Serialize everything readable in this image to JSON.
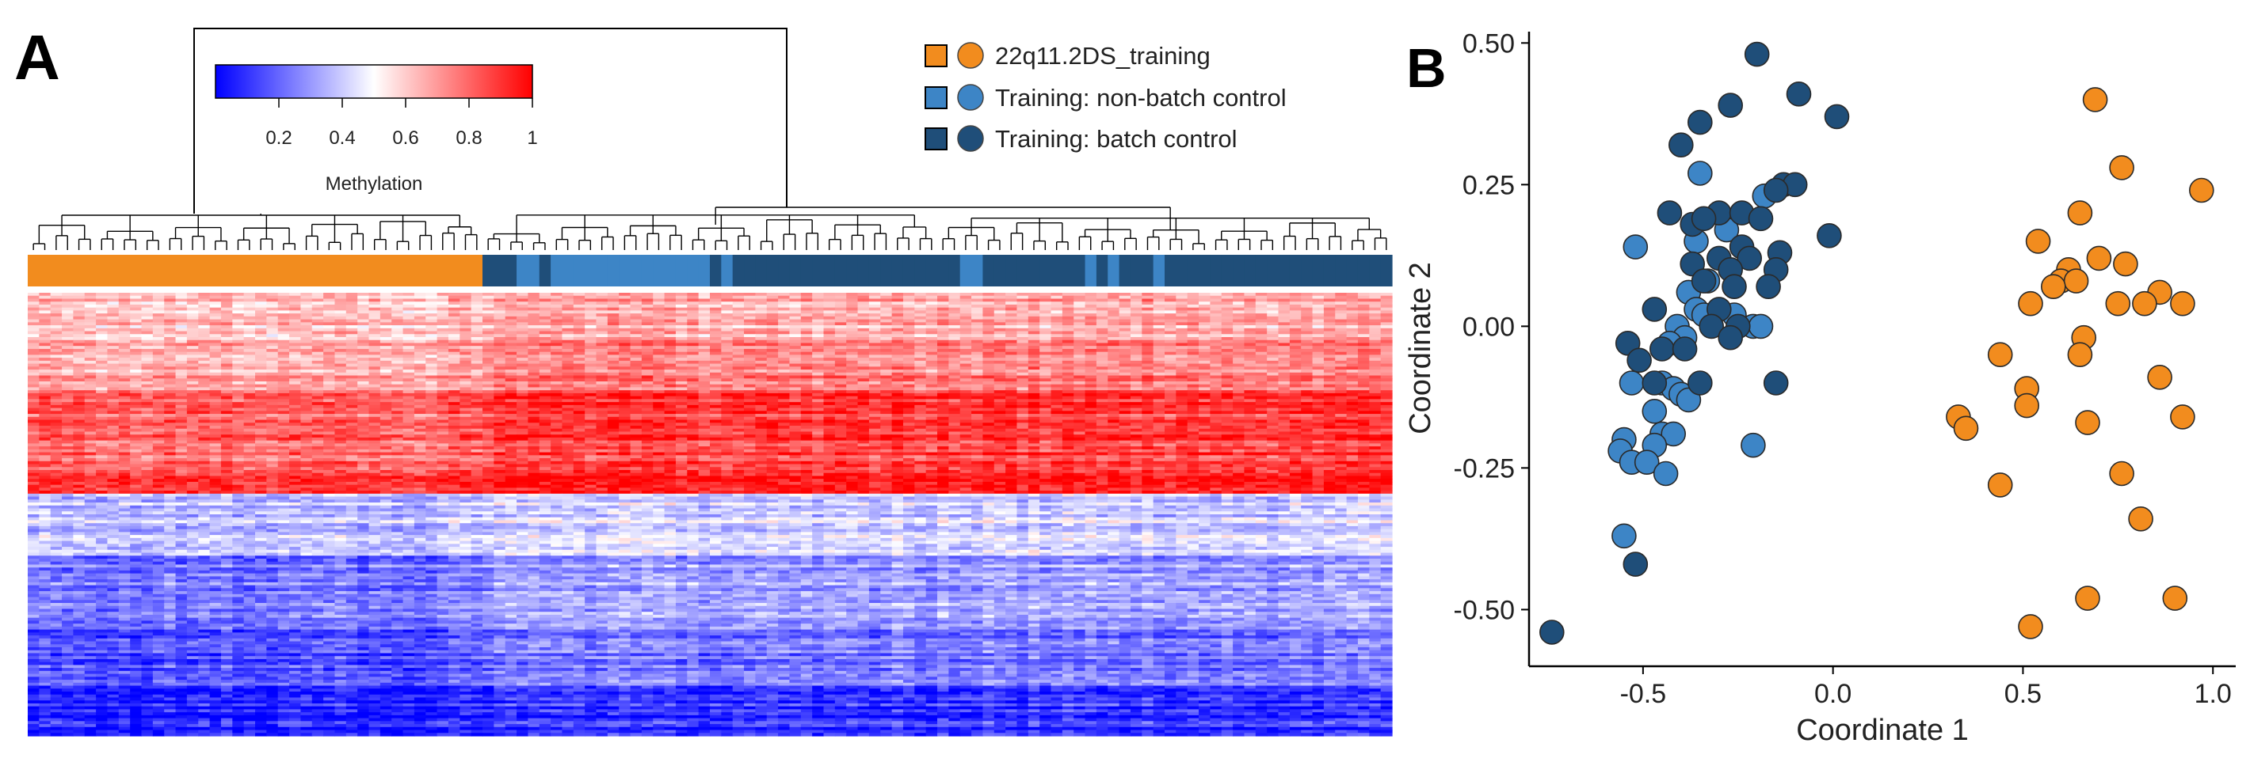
{
  "panel_a": {
    "label": "A",
    "colorbar": {
      "title": "Methylation",
      "ticks": [
        "0.2",
        "0.4",
        "0.6",
        "0.8",
        "1"
      ],
      "tick_values": [
        0.2,
        0.4,
        0.6,
        0.8,
        1.0
      ],
      "range": [
        0.0,
        1.0
      ],
      "low_color": "#0000ff",
      "mid_color": "#ffffff",
      "high_color": "#ff0000"
    },
    "legend": [
      {
        "label": "22q11.2DS_training",
        "square_color": "#f28c1e",
        "circle_color": "#f28c1e"
      },
      {
        "label": "Training: non-batch control",
        "square_color": "#3d85c6",
        "circle_color": "#3d85c6"
      },
      {
        "label": "Training: batch control",
        "square_color": "#1f4e79",
        "circle_color": "#1f4e79"
      }
    ],
    "annotation_bar": {
      "group_counts": {
        "22q11.2DS_training": 40,
        "controls": 80
      },
      "control_pattern": "DDDLLDLLLLLLLLLLLLLLDLDDDDDDDDDDDDDDDDDDDDLLDDDDDDDDDLDLDDDLDDDDDDDDDDDDDDDDDDDDDD"
    },
    "heatmap": {
      "rows": 150,
      "columns": 120,
      "row_blocks": [
        {
          "fraction": 0.1,
          "case_mean": 0.62,
          "control_mean": 0.66
        },
        {
          "fraction": 0.12,
          "case_mean": 0.66,
          "control_mean": 0.74
        },
        {
          "fraction": 0.18,
          "case_mean": 0.8,
          "control_mean": 0.88
        },
        {
          "fraction": 0.05,
          "case_mean": 0.9,
          "control_mean": 0.95
        },
        {
          "fraction": 0.14,
          "case_mean": 0.38,
          "control_mean": 0.42
        },
        {
          "fraction": 0.16,
          "case_mean": 0.24,
          "control_mean": 0.32
        },
        {
          "fraction": 0.13,
          "case_mean": 0.16,
          "control_mean": 0.24
        },
        {
          "fraction": 0.12,
          "case_mean": 0.06,
          "control_mean": 0.1
        }
      ]
    }
  },
  "panel_b": {
    "label": "B",
    "chart_data": {
      "type": "scatter",
      "title": "",
      "xlabel": "Coordinate 1",
      "ylabel": "Coordinate 2",
      "xlim": [
        -0.8,
        1.06
      ],
      "ylim": [
        -0.6,
        0.52
      ],
      "x_ticks": [
        -0.5,
        0.0,
        0.5,
        1.0
      ],
      "x_tick_labels": [
        "-0.5",
        "0.0",
        "0.5",
        "1.0"
      ],
      "y_ticks": [
        0.5,
        0.25,
        0.0,
        -0.25,
        -0.5
      ],
      "y_tick_labels": [
        "0.50",
        "0.25",
        "0.00",
        "-0.25",
        "-0.50"
      ],
      "series": [
        {
          "name": "22q11.2DS_training",
          "color": "#f28c1e",
          "points": [
            [
              0.69,
              0.4
            ],
            [
              0.76,
              0.28
            ],
            [
              0.97,
              0.24
            ],
            [
              0.65,
              0.2
            ],
            [
              0.54,
              0.15
            ],
            [
              0.7,
              0.12
            ],
            [
              0.62,
              0.1
            ],
            [
              0.77,
              0.11
            ],
            [
              0.6,
              0.08
            ],
            [
              0.64,
              0.08
            ],
            [
              0.58,
              0.07
            ],
            [
              0.86,
              0.06
            ],
            [
              0.52,
              0.04
            ],
            [
              0.75,
              0.04
            ],
            [
              0.82,
              0.04
            ],
            [
              0.92,
              0.04
            ],
            [
              0.66,
              -0.02
            ],
            [
              0.44,
              -0.05
            ],
            [
              0.65,
              -0.05
            ],
            [
              0.51,
              -0.11
            ],
            [
              0.86,
              -0.09
            ],
            [
              0.51,
              -0.14
            ],
            [
              0.33,
              -0.16
            ],
            [
              0.35,
              -0.18
            ],
            [
              0.67,
              -0.17
            ],
            [
              0.92,
              -0.16
            ],
            [
              0.76,
              -0.26
            ],
            [
              0.44,
              -0.28
            ],
            [
              0.81,
              -0.34
            ],
            [
              0.67,
              -0.48
            ],
            [
              0.9,
              -0.48
            ],
            [
              0.52,
              -0.53
            ]
          ]
        },
        {
          "name": "Training: non-batch control",
          "color": "#3d85c6",
          "points": [
            [
              -0.35,
              0.27
            ],
            [
              -0.18,
              0.23
            ],
            [
              -0.52,
              0.14
            ],
            [
              -0.28,
              0.17
            ],
            [
              -0.36,
              0.15
            ],
            [
              -0.38,
              0.06
            ],
            [
              -0.33,
              0.08
            ],
            [
              -0.36,
              0.03
            ],
            [
              -0.34,
              0.02
            ],
            [
              -0.41,
              0.0
            ],
            [
              -0.39,
              -0.02
            ],
            [
              -0.26,
              0.02
            ],
            [
              -0.21,
              0.0
            ],
            [
              -0.19,
              0.0
            ],
            [
              -0.43,
              -0.03
            ],
            [
              -0.45,
              -0.1
            ],
            [
              -0.53,
              -0.1
            ],
            [
              -0.42,
              -0.11
            ],
            [
              -0.4,
              -0.12
            ],
            [
              -0.38,
              -0.13
            ],
            [
              -0.47,
              -0.15
            ],
            [
              -0.45,
              -0.19
            ],
            [
              -0.42,
              -0.19
            ],
            [
              -0.55,
              -0.2
            ],
            [
              -0.47,
              -0.21
            ],
            [
              -0.56,
              -0.22
            ],
            [
              -0.53,
              -0.24
            ],
            [
              -0.49,
              -0.24
            ],
            [
              -0.44,
              -0.26
            ],
            [
              -0.21,
              -0.21
            ],
            [
              -0.55,
              -0.37
            ]
          ]
        },
        {
          "name": "Training: batch control",
          "color": "#1f4e79",
          "points": [
            [
              -0.2,
              0.48
            ],
            [
              -0.09,
              0.41
            ],
            [
              0.01,
              0.37
            ],
            [
              -0.27,
              0.39
            ],
            [
              -0.35,
              0.36
            ],
            [
              -0.4,
              0.32
            ],
            [
              -0.13,
              0.25
            ],
            [
              -0.1,
              0.25
            ],
            [
              -0.15,
              0.24
            ],
            [
              -0.43,
              0.2
            ],
            [
              -0.3,
              0.2
            ],
            [
              -0.24,
              0.2
            ],
            [
              -0.37,
              0.18
            ],
            [
              -0.34,
              0.19
            ],
            [
              -0.19,
              0.19
            ],
            [
              -0.01,
              0.16
            ],
            [
              -0.24,
              0.14
            ],
            [
              -0.14,
              0.13
            ],
            [
              -0.3,
              0.12
            ],
            [
              -0.22,
              0.12
            ],
            [
              -0.37,
              0.11
            ],
            [
              -0.27,
              0.1
            ],
            [
              -0.15,
              0.1
            ],
            [
              -0.34,
              0.08
            ],
            [
              -0.26,
              0.07
            ],
            [
              -0.17,
              0.07
            ],
            [
              -0.47,
              0.03
            ],
            [
              -0.3,
              0.03
            ],
            [
              -0.25,
              0.0
            ],
            [
              -0.32,
              0.0
            ],
            [
              -0.27,
              -0.02
            ],
            [
              -0.54,
              -0.03
            ],
            [
              -0.45,
              -0.04
            ],
            [
              -0.39,
              -0.04
            ],
            [
              -0.51,
              -0.06
            ],
            [
              -0.47,
              -0.1
            ],
            [
              -0.35,
              -0.1
            ],
            [
              -0.15,
              -0.1
            ],
            [
              -0.52,
              -0.42
            ],
            [
              -0.74,
              -0.54
            ]
          ]
        }
      ]
    }
  }
}
